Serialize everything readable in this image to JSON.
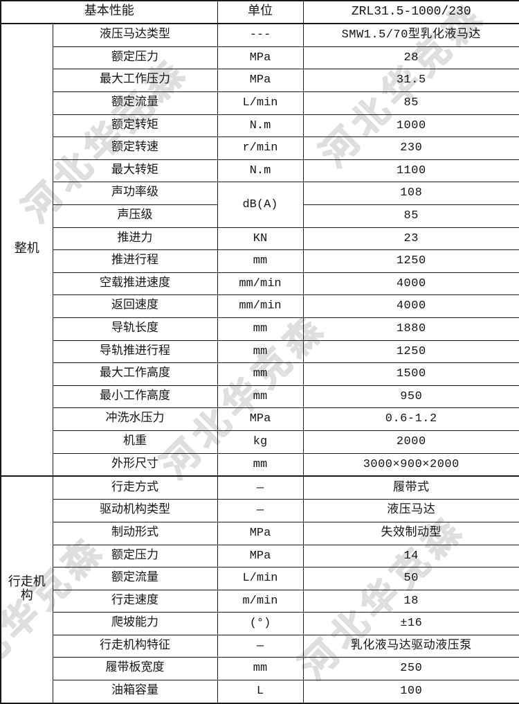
{
  "header": {
    "param_col": "基本性能",
    "unit_col": "单位",
    "model_col": "ZRL31.5-1000/230"
  },
  "sections": [
    {
      "group": "整机",
      "rows": [
        {
          "label": "液压马达类型",
          "unit": "---",
          "value": "SMW1.5/70型乳化液马达"
        },
        {
          "label": "额定压力",
          "unit": "MPa",
          "value": "28"
        },
        {
          "label": "最大工作压力",
          "unit": "MPa",
          "value": "31.5"
        },
        {
          "label": "额定流量",
          "unit": "L/min",
          "value": "85"
        },
        {
          "label": "额定转矩",
          "unit": "N.m",
          "value": "1000"
        },
        {
          "label": "额定转速",
          "unit": "r/min",
          "value": "230"
        },
        {
          "label": "最大转矩",
          "unit": "N.m",
          "value": "1100"
        },
        {
          "label": "声功率级",
          "unit": "dB(A)",
          "unit_rowspan": 2,
          "value": "108"
        },
        {
          "label": "声压级",
          "unit": null,
          "value": "85"
        },
        {
          "label": "推进力",
          "unit": "KN",
          "value": "23"
        },
        {
          "label": "推进行程",
          "unit": "mm",
          "value": "1250"
        },
        {
          "label": "空载推进速度",
          "unit": "mm/min",
          "value": "4000"
        },
        {
          "label": "返回速度",
          "unit": "mm/min",
          "value": "4000"
        },
        {
          "label": "导轨长度",
          "unit": "mm",
          "value": "1880"
        },
        {
          "label": "导轨推进行程",
          "unit": "mm",
          "value": "1250"
        },
        {
          "label": "最大工作高度",
          "unit": "mm",
          "value": "1500"
        },
        {
          "label": "最小工作高度",
          "unit": "mm",
          "value": "950"
        },
        {
          "label": "冲洗水压力",
          "unit": "MPa",
          "value": "0.6-1.2"
        },
        {
          "label": "机重",
          "unit": "kg",
          "value": "2000"
        },
        {
          "label": "外形尺寸",
          "unit": "mm",
          "value": "3000×900×2000"
        }
      ]
    },
    {
      "group": "行走机构",
      "rows": [
        {
          "label": "行走方式",
          "unit": "—",
          "value": "履带式"
        },
        {
          "label": "驱动机构类型",
          "unit": "—",
          "value": "液压马达"
        },
        {
          "label": "制动形式",
          "unit": "MPa",
          "value": "失效制动型"
        },
        {
          "label": "额定压力",
          "unit": "MPa",
          "value": "14"
        },
        {
          "label": "额定流量",
          "unit": "L/min",
          "value": "50"
        },
        {
          "label": "行走速度",
          "unit": "m/min",
          "value": "18"
        },
        {
          "label": "爬坡能力",
          "unit": "(°)",
          "value": "±16"
        },
        {
          "label": "行走机构特征",
          "unit": "—",
          "value": "乳化液马达驱动液压泵"
        },
        {
          "label": "履带板宽度",
          "unit": "mm",
          "value": "250"
        },
        {
          "label": "油箱容量",
          "unit": "L",
          "value": "100"
        }
      ]
    }
  ],
  "watermark": {
    "text": "河北华克森",
    "color": "#dedede"
  },
  "layout_colors": {
    "border": "#161616",
    "text": "#141414",
    "background": "#ffffff"
  }
}
